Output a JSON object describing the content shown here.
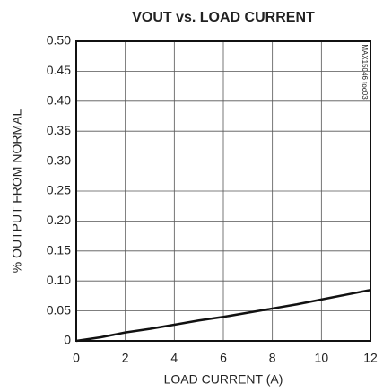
{
  "chart_data": {
    "type": "line",
    "title": "VOUT vs. LOAD CURRENT",
    "side_note": "MAX15046 toc03",
    "x_label": "LOAD CURRENT (A)",
    "y_label": "% OUTPUT FROM NORMAL",
    "x": [
      0,
      1,
      2,
      3,
      4,
      5,
      6,
      7,
      8,
      9,
      10,
      11,
      12
    ],
    "series": [
      {
        "color": "#111111",
        "values": [
          0,
          0.006,
          0.014,
          0.02,
          0.027,
          0.034,
          0.04,
          0.047,
          0.054,
          0.061,
          0.069,
          0.077,
          0.085
        ]
      }
    ],
    "xlim": [
      0,
      12
    ],
    "xticks": [
      0,
      2,
      4,
      6,
      8,
      10,
      12
    ],
    "ylim": [
      0,
      0.5
    ],
    "yticks": [
      0,
      0.05,
      {
        "value": 0.1,
        "label": "0.10"
      },
      0.15,
      {
        "value": 0.2,
        "label": "0.20"
      },
      0.25,
      {
        "value": 0.3,
        "label": "0.30"
      },
      0.35,
      {
        "value": 0.4,
        "label": "0.40"
      },
      0.45,
      {
        "value": 0.5,
        "label": "0.50"
      }
    ],
    "grid": true
  }
}
